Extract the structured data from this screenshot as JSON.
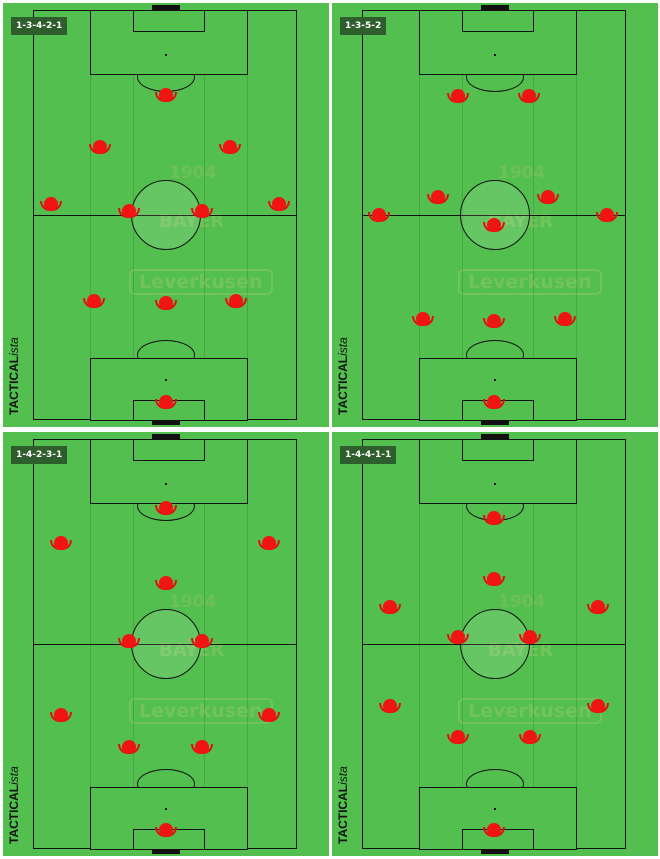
{
  "brand": {
    "bold": "TACTICAL",
    "italic": "ista"
  },
  "crest": {
    "year": "1904",
    "name": "BAYER",
    "city": "Leverkusen"
  },
  "colors": {
    "pitch": "#52bf4f",
    "player": "#f21313",
    "label_bg": "#2e5e2c"
  },
  "panels": [
    {
      "formation": "1-3-4-2-1",
      "players": 11
    },
    {
      "formation": "1-3-5-2",
      "players": 11
    },
    {
      "formation": "1-4-2-3-1",
      "players": 11
    },
    {
      "formation": "1-4-4-1-1",
      "players": 11
    }
  ]
}
